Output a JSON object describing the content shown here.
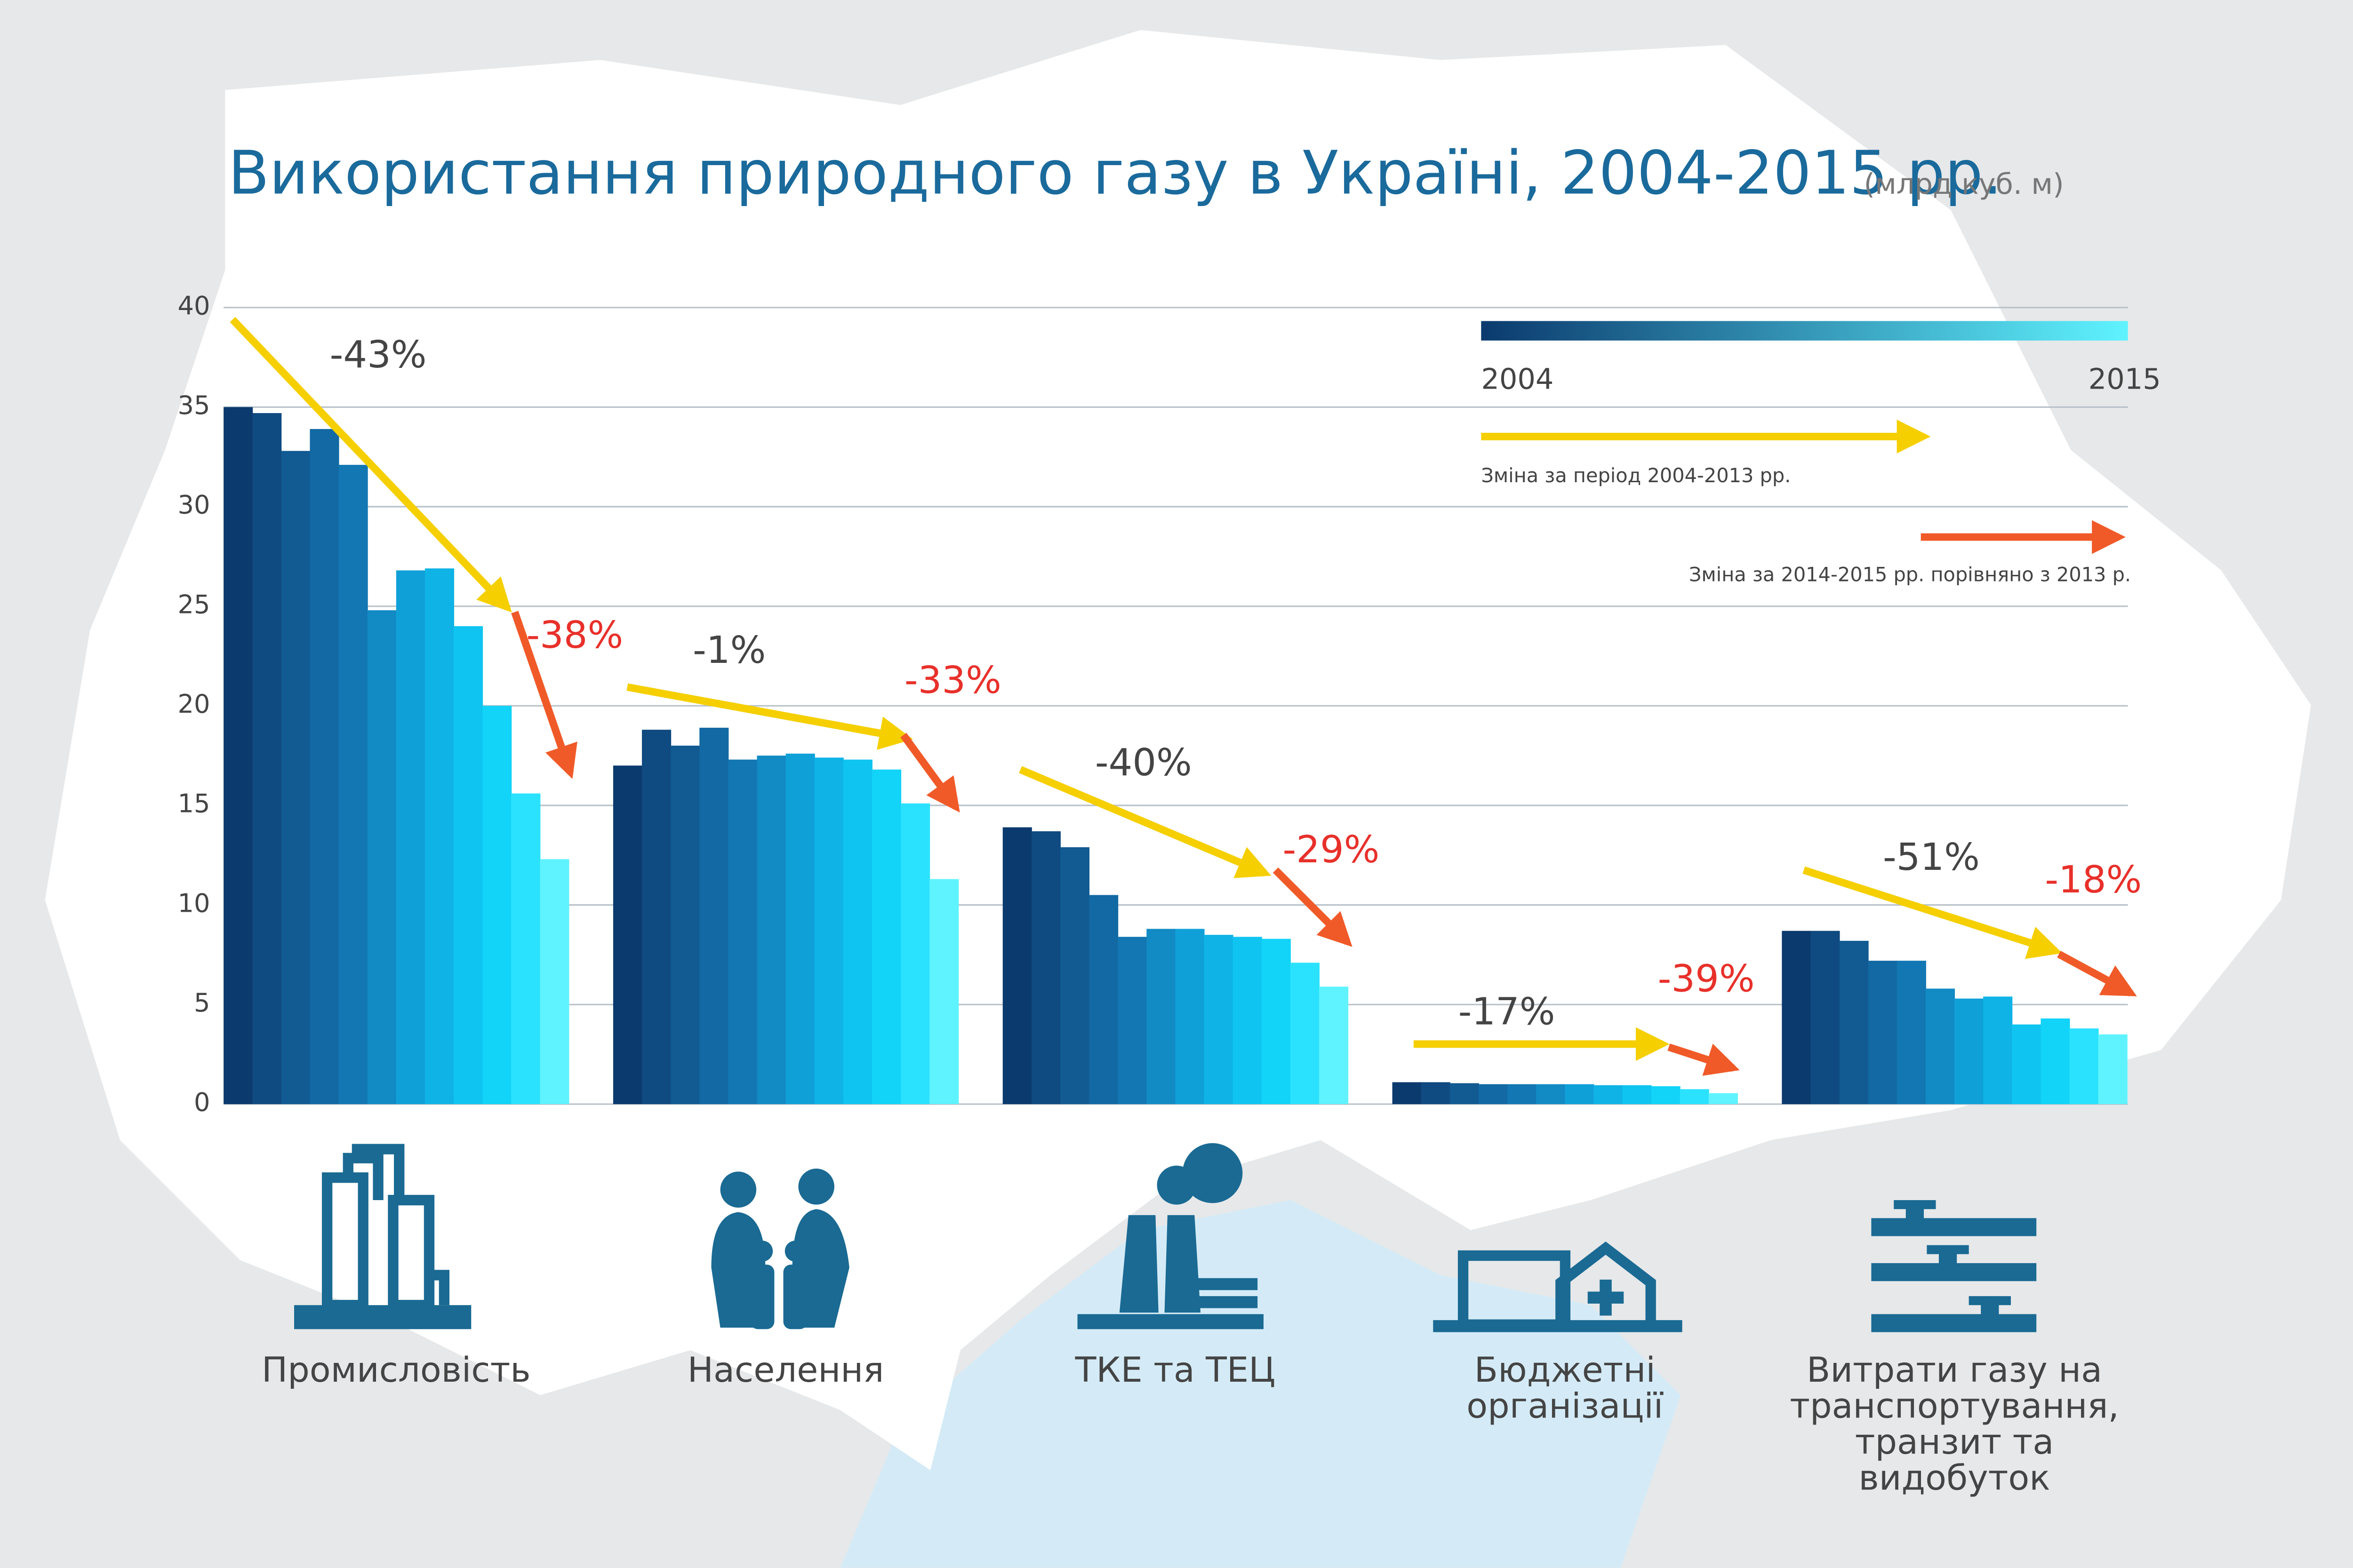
{
  "chart_data": {
    "type": "bar",
    "title": "Використання природного газу в Україні, 2004-2015 рр.",
    "unit": "(млрд куб. м)",
    "categories": [
      "Промисловість",
      "Населення",
      "ТКЕ та ТЕЦ",
      "Бюджетні організації",
      "Витрати газу на транспортування, транзит та видобуток"
    ],
    "series": [
      {
        "color": "#0b3a6e",
        "values": [
          35.0,
          17.0,
          13.9,
          1.1,
          8.7
        ]
      },
      {
        "color": "#0f4a80",
        "values": [
          34.7,
          18.8,
          13.7,
          1.1,
          8.7
        ]
      },
      {
        "color": "#115a92",
        "values": [
          32.8,
          18.0,
          12.9,
          1.05,
          8.2
        ]
      },
      {
        "color": "#1269a3",
        "values": [
          33.9,
          18.9,
          10.5,
          1.0,
          7.2
        ]
      },
      {
        "color": "#1277b2",
        "values": [
          32.1,
          17.3,
          8.4,
          1.0,
          7.2
        ]
      },
      {
        "color": "#128ac4",
        "values": [
          24.8,
          17.5,
          8.8,
          1.0,
          5.8
        ]
      },
      {
        "color": "#10a0d8",
        "values": [
          26.8,
          17.6,
          8.8,
          1.0,
          5.3
        ]
      },
      {
        "color": "#0fb3e6",
        "values": [
          26.9,
          17.4,
          8.5,
          0.95,
          5.4
        ]
      },
      {
        "color": "#0fc4f0",
        "values": [
          24.0,
          17.3,
          8.4,
          0.95,
          4.0
        ]
      },
      {
        "color": "#12d3f8",
        "values": [
          20.0,
          16.8,
          8.3,
          0.9,
          4.3
        ]
      },
      {
        "color": "#2be2fe",
        "values": [
          15.6,
          15.1,
          7.1,
          0.75,
          3.8
        ]
      },
      {
        "color": "#5ff3ff",
        "values": [
          12.3,
          11.3,
          5.9,
          0.55,
          3.5
        ]
      }
    ],
    "ylim": [
      0,
      40
    ],
    "yticks": [
      0,
      5,
      10,
      15,
      20,
      25,
      30,
      35,
      40
    ],
    "grid": true,
    "legend": {
      "start": "2004",
      "end": "2015",
      "change_2004_2013": "Зміна за період 2004-2013 рр.",
      "change_2014_2015": "Зміна за 2014-2015 рр. порівняно з 2013 р."
    },
    "annotations": [
      {
        "change_2004_2013": "-43%",
        "change_2014_2015": "-38%"
      },
      {
        "change_2004_2013": "-1%",
        "change_2014_2015": "-33%"
      },
      {
        "change_2004_2013": "-40%",
        "change_2014_2015": "-29%"
      },
      {
        "change_2004_2013": "-17%",
        "change_2014_2015": "-39%"
      },
      {
        "change_2004_2013": "-51%",
        "change_2014_2015": "-18%"
      }
    ]
  }
}
